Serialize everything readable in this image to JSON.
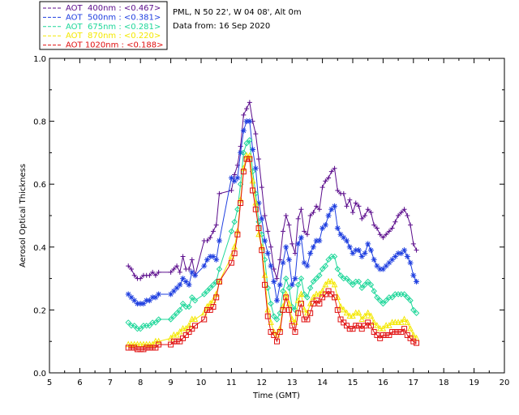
{
  "chart_data": {
    "type": "line",
    "title": "PML, N 50 22', W 04 08', Alt 0m",
    "subtitle": "Data from: 16 Sep 2020",
    "xlabel": "Time (GMT)",
    "ylabel": "Aerosol Optical Thickness",
    "xlim": [
      5,
      20
    ],
    "ylim": [
      0.0,
      1.0
    ],
    "xticks": [
      "5",
      "6",
      "7",
      "8",
      "9",
      "10",
      "11",
      "12",
      "13",
      "14",
      "15",
      "16",
      "17",
      "18",
      "19",
      "20"
    ],
    "yticks": [
      "0.0",
      "0.2",
      "0.4",
      "0.6",
      "0.8",
      "1.0"
    ],
    "grid": false,
    "legend_position": "top-left-outside",
    "x": [
      7.6,
      7.7,
      7.8,
      7.9,
      8.0,
      8.1,
      8.2,
      8.3,
      8.4,
      8.5,
      8.6,
      9.0,
      9.1,
      9.2,
      9.3,
      9.4,
      9.5,
      9.6,
      9.7,
      9.8,
      10.1,
      10.2,
      10.3,
      10.4,
      10.5,
      10.6,
      11.0,
      11.1,
      11.2,
      11.3,
      11.4,
      11.5,
      11.6,
      11.7,
      11.8,
      11.9,
      12.0,
      12.1,
      12.2,
      12.3,
      12.4,
      12.5,
      12.6,
      12.7,
      12.8,
      12.9,
      13.0,
      13.1,
      13.2,
      13.3,
      13.4,
      13.5,
      13.6,
      13.7,
      13.8,
      13.9,
      14.0,
      14.1,
      14.2,
      14.3,
      14.4,
      14.5,
      14.6,
      14.7,
      14.8,
      14.9,
      15.0,
      15.1,
      15.2,
      15.3,
      15.4,
      15.5,
      15.6,
      15.7,
      15.8,
      15.9,
      16.0,
      16.1,
      16.2,
      16.3,
      16.4,
      16.5,
      16.6,
      16.7,
      16.8,
      16.9,
      17.0,
      17.1
    ],
    "series": [
      {
        "name": "AOT  400nm : <0.467>",
        "color": "#5b0d8c",
        "marker": "plus",
        "values": [
          0.34,
          0.33,
          0.31,
          0.3,
          0.3,
          0.31,
          0.31,
          0.31,
          0.32,
          0.31,
          0.32,
          0.32,
          0.33,
          0.34,
          0.32,
          0.37,
          0.33,
          0.33,
          0.36,
          0.31,
          0.42,
          0.42,
          0.43,
          0.45,
          0.47,
          0.57,
          0.58,
          0.63,
          0.66,
          0.72,
          0.82,
          0.84,
          0.86,
          0.8,
          0.76,
          0.68,
          0.59,
          0.5,
          0.45,
          0.4,
          0.33,
          0.3,
          0.36,
          0.45,
          0.5,
          0.47,
          0.41,
          0.38,
          0.49,
          0.52,
          0.45,
          0.44,
          0.5,
          0.51,
          0.53,
          0.52,
          0.59,
          0.61,
          0.62,
          0.64,
          0.65,
          0.58,
          0.57,
          0.57,
          0.53,
          0.55,
          0.51,
          0.54,
          0.53,
          0.49,
          0.5,
          0.52,
          0.51,
          0.47,
          0.46,
          0.44,
          0.43,
          0.44,
          0.45,
          0.46,
          0.48,
          0.5,
          0.51,
          0.52,
          0.5,
          0.47,
          0.41,
          0.39
        ]
      },
      {
        "name": "AOT  500nm : <0.381>",
        "color": "#1f3fe0",
        "marker": "star",
        "values": [
          0.25,
          0.24,
          0.23,
          0.22,
          0.22,
          0.22,
          0.23,
          0.23,
          0.24,
          0.24,
          0.25,
          0.25,
          0.26,
          0.27,
          0.28,
          0.3,
          0.29,
          0.28,
          0.32,
          0.31,
          0.34,
          0.36,
          0.37,
          0.37,
          0.36,
          0.42,
          0.62,
          0.61,
          0.62,
          0.7,
          0.77,
          0.8,
          0.8,
          0.71,
          0.65,
          0.54,
          0.49,
          0.42,
          0.38,
          0.34,
          0.29,
          0.23,
          0.28,
          0.35,
          0.4,
          0.36,
          0.28,
          0.3,
          0.41,
          0.43,
          0.35,
          0.34,
          0.38,
          0.4,
          0.42,
          0.42,
          0.46,
          0.47,
          0.5,
          0.52,
          0.53,
          0.46,
          0.44,
          0.43,
          0.42,
          0.4,
          0.38,
          0.39,
          0.39,
          0.37,
          0.38,
          0.41,
          0.39,
          0.36,
          0.34,
          0.33,
          0.33,
          0.34,
          0.35,
          0.36,
          0.37,
          0.38,
          0.38,
          0.39,
          0.37,
          0.35,
          0.31,
          0.29
        ]
      },
      {
        "name": "AOT  675nm : <0.281>",
        "color": "#1fd79a",
        "marker": "diamond",
        "values": [
          0.16,
          0.15,
          0.15,
          0.14,
          0.14,
          0.15,
          0.15,
          0.15,
          0.16,
          0.16,
          0.17,
          0.17,
          0.18,
          0.19,
          0.2,
          0.22,
          0.21,
          0.21,
          0.24,
          0.23,
          0.25,
          0.26,
          0.27,
          0.28,
          0.29,
          0.33,
          0.45,
          0.48,
          0.52,
          0.6,
          0.7,
          0.73,
          0.74,
          0.64,
          0.57,
          0.48,
          0.44,
          0.36,
          0.27,
          0.22,
          0.18,
          0.17,
          0.19,
          0.26,
          0.3,
          0.27,
          0.21,
          0.2,
          0.28,
          0.3,
          0.25,
          0.24,
          0.27,
          0.29,
          0.3,
          0.31,
          0.33,
          0.34,
          0.36,
          0.37,
          0.37,
          0.33,
          0.31,
          0.3,
          0.3,
          0.29,
          0.28,
          0.29,
          0.29,
          0.27,
          0.28,
          0.29,
          0.28,
          0.26,
          0.24,
          0.23,
          0.22,
          0.23,
          0.24,
          0.24,
          0.25,
          0.25,
          0.25,
          0.25,
          0.24,
          0.23,
          0.2,
          0.19
        ]
      },
      {
        "name": "AOT  870nm : <0.220>",
        "color": "#f4e800",
        "marker": "triangle",
        "values": [
          0.09,
          0.09,
          0.09,
          0.09,
          0.09,
          0.09,
          0.09,
          0.09,
          0.09,
          0.1,
          0.1,
          0.11,
          0.12,
          0.12,
          0.13,
          0.14,
          0.14,
          0.15,
          0.17,
          0.17,
          0.19,
          0.21,
          0.22,
          0.23,
          0.25,
          0.29,
          0.37,
          0.4,
          0.45,
          0.55,
          0.65,
          0.69,
          0.69,
          0.61,
          0.54,
          0.44,
          0.4,
          0.31,
          0.2,
          0.16,
          0.13,
          0.12,
          0.14,
          0.21,
          0.25,
          0.22,
          0.17,
          0.16,
          0.23,
          0.25,
          0.2,
          0.19,
          0.22,
          0.24,
          0.25,
          0.25,
          0.26,
          0.28,
          0.29,
          0.29,
          0.28,
          0.24,
          0.21,
          0.2,
          0.19,
          0.18,
          0.18,
          0.19,
          0.19,
          0.17,
          0.18,
          0.19,
          0.18,
          0.16,
          0.15,
          0.14,
          0.14,
          0.15,
          0.15,
          0.16,
          0.16,
          0.16,
          0.16,
          0.17,
          0.16,
          0.14,
          0.12,
          0.11
        ]
      },
      {
        "name": "AOT 1020nm : <0.188>",
        "color": "#e01010",
        "marker": "square",
        "values": [
          0.08,
          0.08,
          0.08,
          0.075,
          0.075,
          0.075,
          0.08,
          0.08,
          0.08,
          0.08,
          0.09,
          0.09,
          0.1,
          0.1,
          0.1,
          0.11,
          0.12,
          0.13,
          0.14,
          0.15,
          0.17,
          0.2,
          0.2,
          0.21,
          0.24,
          0.29,
          0.35,
          0.38,
          0.44,
          0.54,
          0.64,
          0.68,
          0.68,
          0.58,
          0.52,
          0.46,
          0.39,
          0.28,
          0.18,
          0.13,
          0.12,
          0.1,
          0.13,
          0.2,
          0.24,
          0.2,
          0.15,
          0.13,
          0.19,
          0.22,
          0.17,
          0.17,
          0.19,
          0.22,
          0.23,
          0.22,
          0.24,
          0.25,
          0.26,
          0.25,
          0.24,
          0.2,
          0.17,
          0.16,
          0.15,
          0.14,
          0.14,
          0.15,
          0.15,
          0.14,
          0.15,
          0.16,
          0.15,
          0.13,
          0.12,
          0.11,
          0.12,
          0.12,
          0.12,
          0.13,
          0.13,
          0.13,
          0.13,
          0.14,
          0.12,
          0.11,
          0.1,
          0.095
        ]
      }
    ]
  }
}
